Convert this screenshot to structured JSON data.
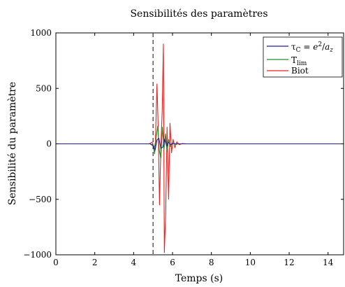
{
  "chart_data": {
    "type": "line",
    "title": "Sensibilités des paramètres",
    "xlabel": "Temps (s)",
    "ylabel": "Sensibilité du paramètre",
    "xlim": [
      0,
      14.8
    ],
    "ylim": [
      -1000,
      1000
    ],
    "xticks": [
      0,
      2,
      4,
      6,
      8,
      10,
      12,
      14
    ],
    "yticks": [
      -1000,
      -500,
      0,
      500,
      1000
    ],
    "xtick_labels": [
      "0",
      "2",
      "4",
      "6",
      "8",
      "10",
      "12",
      "14"
    ],
    "ytick_labels": [
      "−1000",
      "−500",
      "0",
      "500",
      "1000"
    ],
    "grid": false,
    "legend_position": "top-right",
    "vline": {
      "x": 5.0,
      "style": "dashed",
      "color": "#333333"
    },
    "series": [
      {
        "name": "Biot",
        "color": "#e8201f",
        "x": [
          0,
          4.8,
          4.95,
          5.05,
          5.12,
          5.2,
          5.27,
          5.33,
          5.4,
          5.47,
          5.53,
          5.58,
          5.65,
          5.72,
          5.8,
          5.87,
          5.95,
          6.03,
          6.12,
          6.22,
          6.35,
          6.5,
          6.7,
          14.8
        ],
        "y": [
          0,
          0,
          15,
          -40,
          10,
          540,
          100,
          -550,
          -30,
          300,
          900,
          -980,
          -620,
          150,
          -500,
          185,
          -80,
          40,
          -35,
          18,
          -8,
          3,
          0,
          0
        ]
      },
      {
        "name": "T_lim",
        "color": "#2a8a2a",
        "x": [
          0,
          4.85,
          5.0,
          5.08,
          5.16,
          5.24,
          5.32,
          5.4,
          5.48,
          5.56,
          5.64,
          5.72,
          5.8,
          5.9,
          6.0,
          6.15,
          6.3,
          14.8
        ],
        "y": [
          0,
          0,
          -20,
          -90,
          60,
          160,
          -60,
          -130,
          150,
          -50,
          90,
          -70,
          40,
          -25,
          12,
          -5,
          0,
          0
        ]
      },
      {
        "name": "τ_C = e²/a_z",
        "color": "#1f1fa0",
        "x": [
          0,
          4.85,
          5.0,
          5.1,
          5.2,
          5.3,
          5.4,
          5.5,
          5.6,
          5.7,
          5.8,
          5.9,
          6.05,
          6.2,
          14.8
        ],
        "y": [
          0,
          0,
          -10,
          -60,
          35,
          50,
          -40,
          -30,
          45,
          -20,
          15,
          -8,
          4,
          0,
          0
        ]
      }
    ],
    "legend": [
      {
        "series": "τ_C = e²/a_z",
        "color": "#1f1fa0",
        "label_parts": {
          "tau": "τ",
          "tau_sub": "C",
          "eq": " = ",
          "num": "e",
          "num_sup": "2",
          "slash": "/",
          "den": "a",
          "den_sub": "z"
        }
      },
      {
        "series": "T_lim",
        "color": "#2a8a2a",
        "label_parts": {
          "main": "T",
          "sub": "lim"
        }
      },
      {
        "series": "Biot",
        "color": "#e8201f",
        "label_parts": {
          "main": "Biot"
        }
      }
    ]
  }
}
